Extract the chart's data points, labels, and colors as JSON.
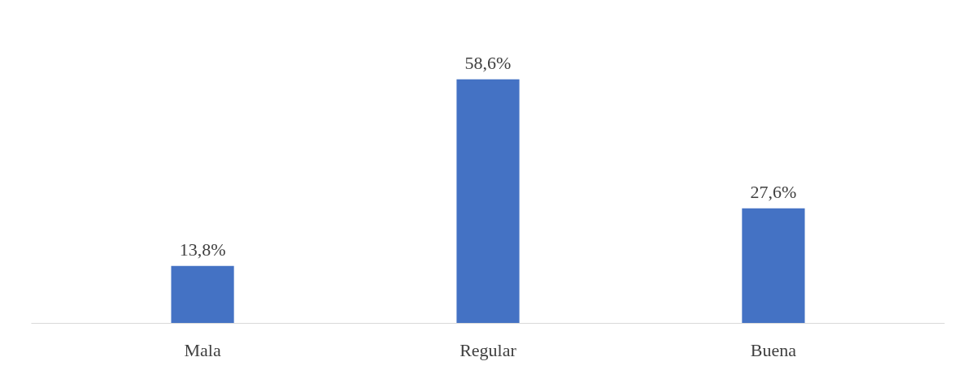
{
  "chart_data": {
    "type": "bar",
    "categories": [
      "Mala",
      "Regular",
      "Buena"
    ],
    "values": [
      13.8,
      58.6,
      27.6
    ],
    "value_labels": [
      "13,8%",
      "58,6%",
      "27,6%"
    ],
    "color": "#4472c4"
  }
}
